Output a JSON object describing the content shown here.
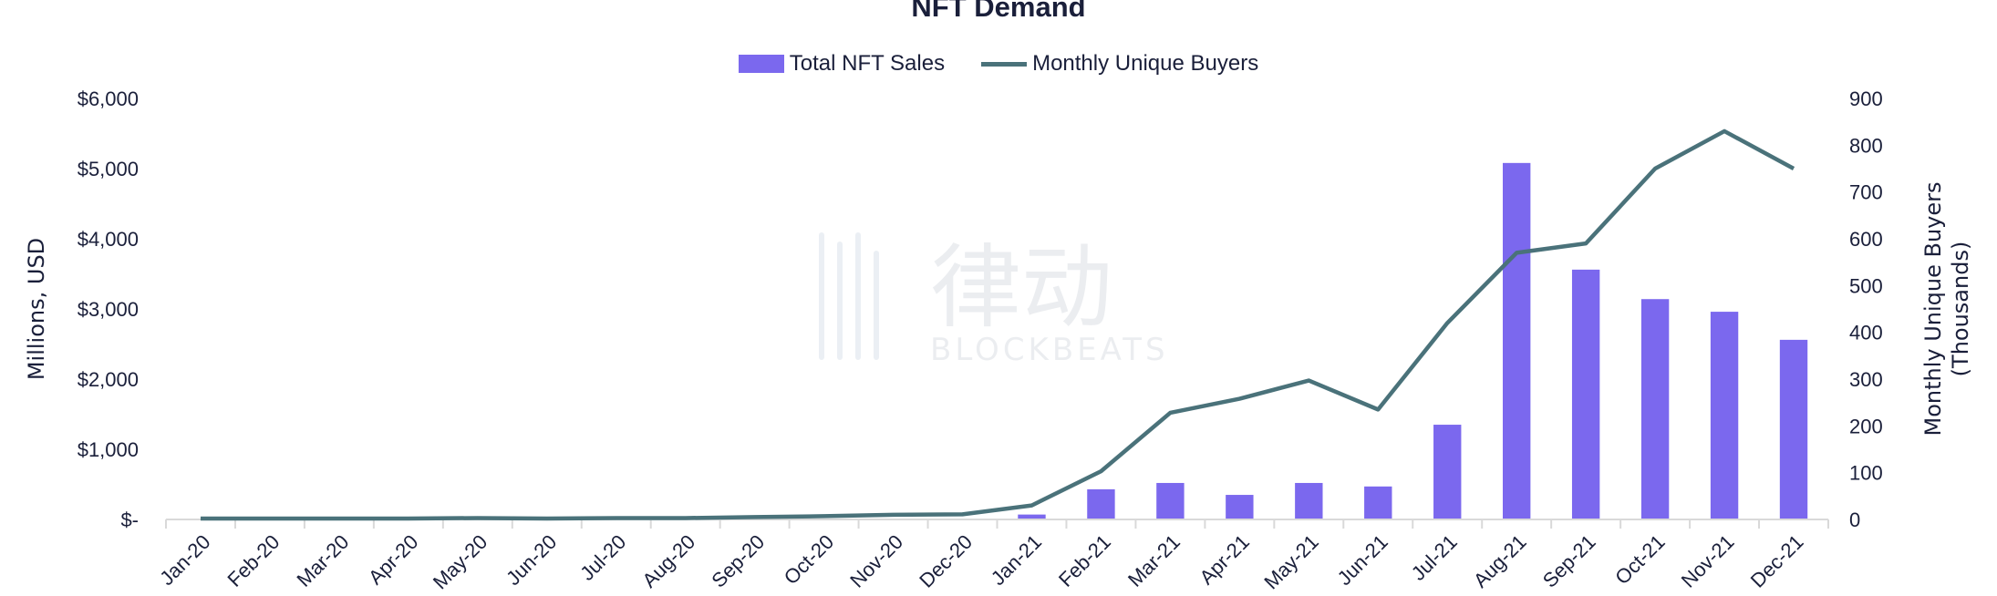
{
  "chart_data": {
    "type": "bar+line",
    "title": "NFT Demand",
    "categories": [
      "Jan-20",
      "Feb-20",
      "Mar-20",
      "Apr-20",
      "May-20",
      "Jun-20",
      "Jul-20",
      "Aug-20",
      "Sep-20",
      "Oct-20",
      "Nov-20",
      "Dec-20",
      "Jan-21",
      "Feb-21",
      "Mar-21",
      "Apr-21",
      "May-21",
      "Jun-21",
      "Jul-21",
      "Aug-21",
      "Sep-21",
      "Oct-21",
      "Nov-21",
      "Dec-21"
    ],
    "series": [
      {
        "name": "Total NFT Sales",
        "type": "bar",
        "axis": "left",
        "color": "#7b68ee",
        "values": [
          1,
          1,
          1,
          1,
          2,
          1,
          2,
          2,
          3,
          4,
          5,
          6,
          70,
          430,
          520,
          350,
          520,
          470,
          1350,
          5080,
          3560,
          3140,
          2960,
          2560
        ]
      },
      {
        "name": "Monthly Unique Buyers",
        "type": "line",
        "axis": "right",
        "color": "#4a727a",
        "values": [
          2,
          2,
          2,
          2,
          3,
          2,
          3,
          3,
          5,
          7,
          10,
          11,
          30,
          103,
          228,
          258,
          297,
          235,
          420,
          570,
          590,
          750,
          830,
          750
        ]
      }
    ],
    "ylabel": "Millions, USD",
    "y2label_lines": [
      "Monthly Unique Buyers",
      "(Thousands)"
    ],
    "ylim": [
      0,
      6000
    ],
    "y2lim": [
      0,
      900
    ],
    "yticks": [
      "$-",
      "$1,000",
      "$2,000",
      "$3,000",
      "$4,000",
      "$5,000",
      "$6,000"
    ],
    "y2ticks": [
      "0",
      "100",
      "200",
      "300",
      "400",
      "500",
      "600",
      "700",
      "800",
      "900"
    ],
    "legend": "top-center",
    "grid": false,
    "watermark": "律动 BLOCKBEATS"
  }
}
